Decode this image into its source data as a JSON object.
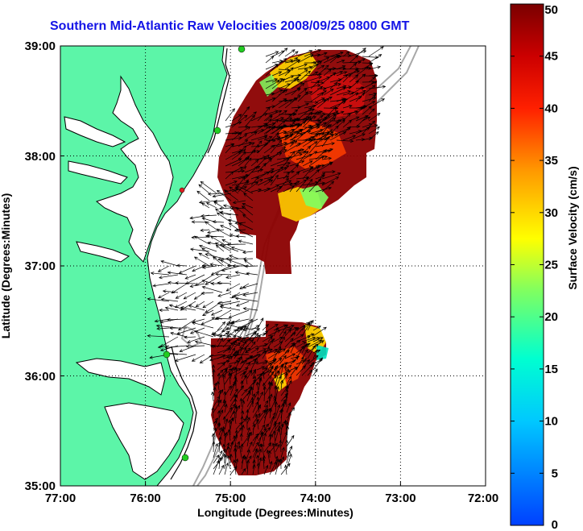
{
  "title": "Southern Mid-Atlantic Raw Velocities 2008/09/25 0800 GMT",
  "axes": {
    "xlabel": "Longitude (Degrees:Minutes)",
    "ylabel": "Latitude (Degrees:Minutes)",
    "x_ticks": [
      "77:00",
      "76:00",
      "75:00",
      "74:00",
      "73:00",
      "72:00"
    ],
    "y_ticks": [
      "39:00",
      "38:00",
      "37:00",
      "36:00",
      "35:00"
    ]
  },
  "colorbar": {
    "label": "Surface Velocity (cm/s)",
    "ticks": [
      "50",
      "45",
      "40",
      "35",
      "30",
      "25",
      "20",
      "15",
      "10",
      "5",
      "0"
    ],
    "min": 0,
    "max": 50,
    "colormap": "jet"
  },
  "colors": {
    "title": "#1414e6",
    "land": "#5cf5a8",
    "coast": "#000000",
    "bathymetry": "#a8a8a8",
    "arrows": "#000000",
    "high_velocity": "#8b0000",
    "stations": "#22cc22"
  },
  "map": {
    "lon_range": [
      "77:00",
      "72:00"
    ],
    "lat_range": [
      "35:00",
      "39:00"
    ],
    "grid": "dotted"
  }
}
